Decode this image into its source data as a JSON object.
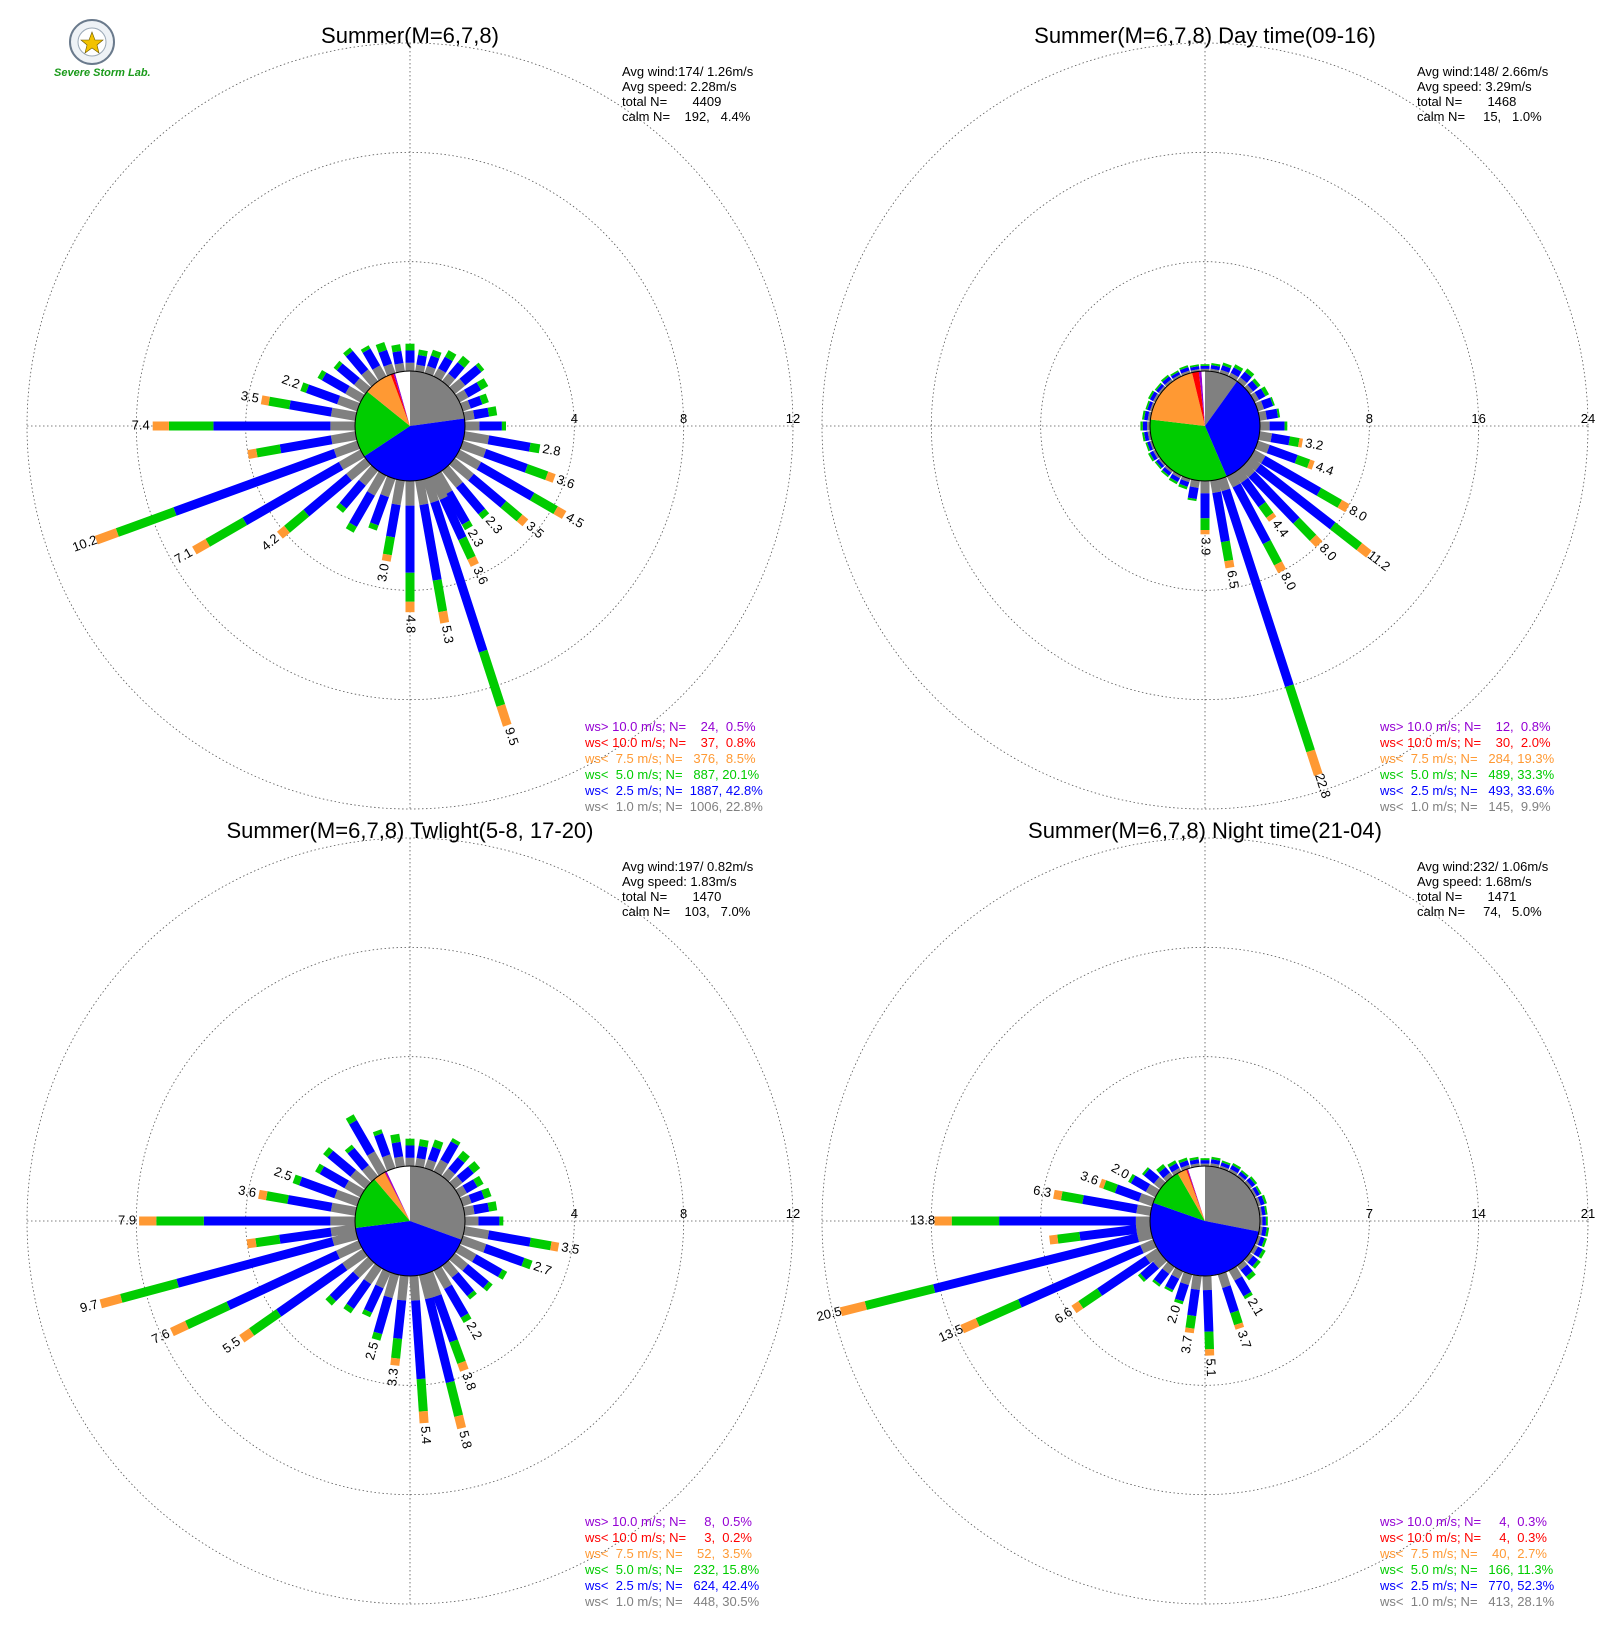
{
  "logo": {
    "text": "Severe Storm Lab.",
    "icon": "severe-storm-lab-seal"
  },
  "colors": {
    "ws_gt10": "#9400d3",
    "ws_lt10": "#ff0000",
    "ws_lt7_5": "#ff9933",
    "ws_lt5": "#00cc00",
    "ws_lt2_5": "#0000ff",
    "ws_lt1": "#808080",
    "calm": "#ffffff",
    "grid": "#555555"
  },
  "chart_data": [
    {
      "type": "wind-rose",
      "title": "Summer(M=6,7,8)",
      "rings": [
        4,
        8,
        12
      ],
      "stats": {
        "avg_wind": "Avg wind:174/ 1.26m/s",
        "avg_speed": "Avg speed: 2.28m/s",
        "total": "total N=       4409",
        "calm": "calm N=    192,   4.4%"
      },
      "legend": [
        {
          "text": "ws> 10.0 m/s; N=    24,  0.5%",
          "color": "#9400d3"
        },
        {
          "text": "ws< 10.0 m/s; N=    37,  0.8%",
          "color": "#ff0000"
        },
        {
          "text": "ws<  7.5 m/s; N=   376,  8.5%",
          "color": "#ff9933"
        },
        {
          "text": "ws<  5.0 m/s; N=   887, 20.1%",
          "color": "#00cc00"
        },
        {
          "text": "ws<  2.5 m/s; N=  1887, 42.8%",
          "color": "#0000ff"
        },
        {
          "text": "ws<  1.0 m/s; N=  1006, 22.8%",
          "color": "#808080"
        }
      ],
      "inner_pie": [
        22.8,
        42.8,
        20.1,
        8.5,
        0.8,
        0.5,
        4.4
      ],
      "bars": [
        {
          "dir": 0,
          "value": 1.0
        },
        {
          "dir": 10,
          "value": 0.8
        },
        {
          "dir": 20,
          "value": 0.9
        },
        {
          "dir": 30,
          "value": 1.1
        },
        {
          "dir": 40,
          "value": 1.2
        },
        {
          "dir": 50,
          "value": 1.4
        },
        {
          "dir": 60,
          "value": 1.2
        },
        {
          "dir": 70,
          "value": 1.0
        },
        {
          "dir": 80,
          "value": 1.2
        },
        {
          "dir": 90,
          "value": 1.5
        },
        {
          "dir": 100,
          "value": 2.8,
          "label": "2.8"
        },
        {
          "dir": 110,
          "value": 3.6,
          "label": "3.6"
        },
        {
          "dir": 120,
          "value": 4.5,
          "label": "4.5"
        },
        {
          "dir": 130,
          "value": 3.5,
          "label": "3.5"
        },
        {
          "dir": 140,
          "value": 2.3,
          "label": "2.3"
        },
        {
          "dir": 150,
          "value": 2.3,
          "label": "2.3"
        },
        {
          "dir": 155,
          "value": 3.6,
          "label": "3.6"
        },
        {
          "dir": 162,
          "value": 9.5,
          "label": "9.5"
        },
        {
          "dir": 170,
          "value": 5.3,
          "label": "5.3"
        },
        {
          "dir": 180,
          "value": 4.8,
          "label": "4.8"
        },
        {
          "dir": 190,
          "value": 3.0,
          "label": "3.0"
        },
        {
          "dir": 200,
          "value": 2.0
        },
        {
          "dir": 210,
          "value": 2.4
        },
        {
          "dir": 220,
          "value": 2.0
        },
        {
          "dir": 230,
          "value": 4.2,
          "label": "4.2"
        },
        {
          "dir": 240,
          "value": 7.1,
          "label": "7.1"
        },
        {
          "dir": 250,
          "value": 10.2,
          "label": "10.2"
        },
        {
          "dir": 260,
          "value": 4.0
        },
        {
          "dir": 270,
          "value": 7.4,
          "label": "7.4"
        },
        {
          "dir": 280,
          "value": 3.5,
          "label": "3.5"
        },
        {
          "dir": 290,
          "value": 2.2,
          "label": "2.2"
        },
        {
          "dir": 300,
          "value": 1.8
        },
        {
          "dir": 310,
          "value": 1.5
        },
        {
          "dir": 320,
          "value": 1.6
        },
        {
          "dir": 330,
          "value": 1.3
        },
        {
          "dir": 340,
          "value": 1.2
        },
        {
          "dir": 350,
          "value": 1.0
        }
      ]
    },
    {
      "type": "wind-rose",
      "title": "Summer(M=6,7,8) Day time(09-16)",
      "rings": [
        8,
        16,
        24
      ],
      "stats": {
        "avg_wind": "Avg wind:148/ 2.66m/s",
        "avg_speed": "Avg speed: 3.29m/s",
        "total": "total N=       1468",
        "calm": "calm N=     15,   1.0%"
      },
      "legend": [
        {
          "text": "ws> 10.0 m/s; N=    12,  0.8%",
          "color": "#9400d3"
        },
        {
          "text": "ws< 10.0 m/s; N=    30,  2.0%",
          "color": "#ff0000"
        },
        {
          "text": "ws<  7.5 m/s; N=   284, 19.3%",
          "color": "#ff9933"
        },
        {
          "text": "ws<  5.0 m/s; N=   489, 33.3%",
          "color": "#00cc00"
        },
        {
          "text": "ws<  2.5 m/s; N=   493, 33.6%",
          "color": "#0000ff"
        },
        {
          "text": "ws<  1.0 m/s; N=   145,  9.9%",
          "color": "#808080"
        }
      ],
      "inner_pie": [
        9.9,
        33.6,
        33.3,
        19.3,
        2.0,
        0.8,
        1.0
      ],
      "bars": [
        {
          "dir": 0,
          "value": 0.5
        },
        {
          "dir": 10,
          "value": 0.6
        },
        {
          "dir": 20,
          "value": 0.8
        },
        {
          "dir": 30,
          "value": 1.0
        },
        {
          "dir": 40,
          "value": 1.2
        },
        {
          "dir": 50,
          "value": 1.0
        },
        {
          "dir": 60,
          "value": 1.2
        },
        {
          "dir": 70,
          "value": 1.3
        },
        {
          "dir": 80,
          "value": 1.5
        },
        {
          "dir": 90,
          "value": 2.0
        },
        {
          "dir": 100,
          "value": 3.2,
          "label": "3.2"
        },
        {
          "dir": 110,
          "value": 4.4,
          "label": "4.4"
        },
        {
          "dir": 120,
          "value": 8.0,
          "label": "8.0"
        },
        {
          "dir": 128,
          "value": 11.2,
          "label": "11.2"
        },
        {
          "dir": 136,
          "value": 8.0,
          "label": "8.0"
        },
        {
          "dir": 144,
          "value": 4.4,
          "label": "4.4"
        },
        {
          "dir": 152,
          "value": 8.0,
          "label": "8.0"
        },
        {
          "dir": 162,
          "value": 22.8,
          "label": "22.8"
        },
        {
          "dir": 170,
          "value": 6.5,
          "label": "6.5"
        },
        {
          "dir": 180,
          "value": 3.9,
          "label": "3.9"
        },
        {
          "dir": 190,
          "value": 1.5
        },
        {
          "dir": 200,
          "value": 0.8
        },
        {
          "dir": 210,
          "value": 0.7
        },
        {
          "dir": 220,
          "value": 0.6
        },
        {
          "dir": 230,
          "value": 0.5
        },
        {
          "dir": 240,
          "value": 0.6
        },
        {
          "dir": 250,
          "value": 0.5
        },
        {
          "dir": 260,
          "value": 0.6
        },
        {
          "dir": 270,
          "value": 0.7
        },
        {
          "dir": 280,
          "value": 0.6
        },
        {
          "dir": 290,
          "value": 0.5
        },
        {
          "dir": 300,
          "value": 0.6
        },
        {
          "dir": 310,
          "value": 0.5
        },
        {
          "dir": 320,
          "value": 0.6
        },
        {
          "dir": 330,
          "value": 0.5
        },
        {
          "dir": 340,
          "value": 0.6
        },
        {
          "dir": 350,
          "value": 0.5
        }
      ]
    },
    {
      "type": "wind-rose",
      "title": "Summer(M=6,7,8) Twlight(5-8, 17-20)",
      "rings": [
        4,
        8,
        12
      ],
      "stats": {
        "avg_wind": "Avg wind:197/ 0.82m/s",
        "avg_speed": "Avg speed: 1.83m/s",
        "total": "total N=       1470",
        "calm": "calm N=    103,   7.0%"
      },
      "legend": [
        {
          "text": "ws> 10.0 m/s; N=     8,  0.5%",
          "color": "#9400d3"
        },
        {
          "text": "ws< 10.0 m/s; N=     3,  0.2%",
          "color": "#ff0000"
        },
        {
          "text": "ws<  7.5 m/s; N=    52,  3.5%",
          "color": "#ff9933"
        },
        {
          "text": "ws<  5.0 m/s; N=   232, 15.8%",
          "color": "#00cc00"
        },
        {
          "text": "ws<  2.5 m/s; N=   624, 42.4%",
          "color": "#0000ff"
        },
        {
          "text": "ws<  1.0 m/s; N=   448, 30.5%",
          "color": "#808080"
        }
      ],
      "inner_pie": [
        30.5,
        42.4,
        15.8,
        3.5,
        0.2,
        0.5,
        7.0
      ],
      "bars": [
        {
          "dir": 0,
          "value": 1.0
        },
        {
          "dir": 10,
          "value": 1.0
        },
        {
          "dir": 20,
          "value": 1.1
        },
        {
          "dir": 30,
          "value": 1.4
        },
        {
          "dir": 40,
          "value": 1.2
        },
        {
          "dir": 50,
          "value": 1.2
        },
        {
          "dir": 60,
          "value": 1.0
        },
        {
          "dir": 70,
          "value": 1.1
        },
        {
          "dir": 80,
          "value": 1.2
        },
        {
          "dir": 90,
          "value": 1.4
        },
        {
          "dir": 100,
          "value": 3.5,
          "label": "3.5"
        },
        {
          "dir": 110,
          "value": 2.7,
          "label": "2.7"
        },
        {
          "dir": 120,
          "value": 2.0
        },
        {
          "dir": 130,
          "value": 1.8
        },
        {
          "dir": 140,
          "value": 1.6
        },
        {
          "dir": 150,
          "value": 2.2,
          "label": "2.2"
        },
        {
          "dir": 160,
          "value": 3.8,
          "label": "3.8"
        },
        {
          "dir": 166,
          "value": 5.8,
          "label": "5.8"
        },
        {
          "dir": 176,
          "value": 5.4,
          "label": "5.4"
        },
        {
          "dir": 186,
          "value": 3.3,
          "label": "3.3"
        },
        {
          "dir": 196,
          "value": 2.5,
          "label": "2.5"
        },
        {
          "dir": 205,
          "value": 1.8
        },
        {
          "dir": 215,
          "value": 2.0
        },
        {
          "dir": 225,
          "value": 2.2
        },
        {
          "dir": 235,
          "value": 5.5,
          "label": "5.5"
        },
        {
          "dir": 245,
          "value": 7.6,
          "label": "7.6"
        },
        {
          "dir": 255,
          "value": 9.7,
          "label": "9.7"
        },
        {
          "dir": 262,
          "value": 4.0
        },
        {
          "dir": 270,
          "value": 7.9,
          "label": "7.9"
        },
        {
          "dir": 280,
          "value": 3.6,
          "label": "3.6"
        },
        {
          "dir": 290,
          "value": 2.5,
          "label": "2.5"
        },
        {
          "dir": 300,
          "value": 1.9
        },
        {
          "dir": 310,
          "value": 2.0
        },
        {
          "dir": 320,
          "value": 1.5
        },
        {
          "dir": 330,
          "value": 2.4
        },
        {
          "dir": 340,
          "value": 1.5
        },
        {
          "dir": 350,
          "value": 1.2
        }
      ]
    },
    {
      "type": "wind-rose",
      "title": "Summer(M=6,7,8) Night time(21-04)",
      "rings": [
        7,
        14,
        21
      ],
      "stats": {
        "avg_wind": "Avg wind:232/ 1.06m/s",
        "avg_speed": "Avg speed: 1.68m/s",
        "total": "total N=       1471",
        "calm": "calm N=     74,   5.0%"
      },
      "legend": [
        {
          "text": "ws> 10.0 m/s; N=     4,  0.3%",
          "color": "#9400d3"
        },
        {
          "text": "ws< 10.0 m/s; N=     4,  0.3%",
          "color": "#ff0000"
        },
        {
          "text": "ws<  7.5 m/s; N=    40,  2.7%",
          "color": "#ff9933"
        },
        {
          "text": "ws<  5.0 m/s; N=   166, 11.3%",
          "color": "#00cc00"
        },
        {
          "text": "ws<  2.5 m/s; N=   770, 52.3%",
          "color": "#0000ff"
        },
        {
          "text": "ws<  1.0 m/s; N=   413, 28.1%",
          "color": "#808080"
        }
      ],
      "inner_pie": [
        28.1,
        52.3,
        11.3,
        2.7,
        0.3,
        0.3,
        5.0
      ],
      "bars": [
        {
          "dir": 0,
          "value": 0.5
        },
        {
          "dir": 10,
          "value": 0.6
        },
        {
          "dir": 20,
          "value": 0.5
        },
        {
          "dir": 30,
          "value": 0.6
        },
        {
          "dir": 40,
          "value": 0.5
        },
        {
          "dir": 50,
          "value": 0.6
        },
        {
          "dir": 60,
          "value": 0.5
        },
        {
          "dir": 70,
          "value": 0.6
        },
        {
          "dir": 80,
          "value": 0.5
        },
        {
          "dir": 90,
          "value": 0.5
        },
        {
          "dir": 100,
          "value": 0.6
        },
        {
          "dir": 110,
          "value": 0.6
        },
        {
          "dir": 120,
          "value": 0.8
        },
        {
          "dir": 130,
          "value": 0.9
        },
        {
          "dir": 140,
          "value": 1.2
        },
        {
          "dir": 150,
          "value": 2.1,
          "label": "2.1"
        },
        {
          "dir": 162,
          "value": 3.7,
          "label": "3.7"
        },
        {
          "dir": 178,
          "value": 5.1,
          "label": "5.1"
        },
        {
          "dir": 188,
          "value": 3.7,
          "label": "3.7"
        },
        {
          "dir": 198,
          "value": 2.0,
          "label": "2.0"
        },
        {
          "dir": 208,
          "value": 1.5
        },
        {
          "dir": 218,
          "value": 1.6
        },
        {
          "dir": 228,
          "value": 2.0
        },
        {
          "dir": 236,
          "value": 6.6,
          "label": "6.6"
        },
        {
          "dir": 246,
          "value": 13.5,
          "label": "13.5"
        },
        {
          "dir": 256,
          "value": 20.5,
          "label": "20.5"
        },
        {
          "dir": 263,
          "value": 6.5
        },
        {
          "dir": 270,
          "value": 13.8,
          "label": "13.8"
        },
        {
          "dir": 280,
          "value": 6.3,
          "label": "6.3"
        },
        {
          "dir": 290,
          "value": 3.6,
          "label": "3.6"
        },
        {
          "dir": 300,
          "value": 2.0,
          "label": "2.0"
        },
        {
          "dir": 310,
          "value": 1.5
        },
        {
          "dir": 320,
          "value": 1.0
        },
        {
          "dir": 330,
          "value": 0.8
        },
        {
          "dir": 340,
          "value": 0.7
        },
        {
          "dir": 350,
          "value": 0.6
        }
      ]
    }
  ]
}
